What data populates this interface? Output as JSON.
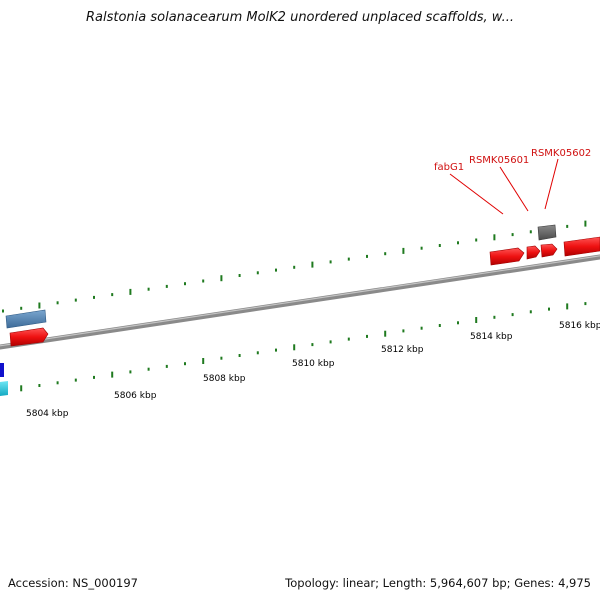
{
  "title": "Ralstonia solanacearum MolK2 unordered unplaced scaffolds, w...",
  "footer": {
    "accession": "Accession: NS_000197",
    "summary": "Topology: linear; Length: 5,964,607 bp; Genes: 4,975"
  },
  "axis": {
    "unit": "kbp",
    "labels": [
      "5804 kbp",
      "5806 kbp",
      "5808 kbp",
      "5810 kbp",
      "5812 kbp",
      "5814 kbp",
      "5816 kbp"
    ]
  },
  "genes": [
    {
      "label": "fabG1",
      "color": "#e00000"
    },
    {
      "label": "RSMK05601",
      "color": "#e00000"
    },
    {
      "label": "RSMK05602",
      "color": "#e00000"
    }
  ],
  "colors": {
    "forward_gene": "#ee1111",
    "steelblue_gene": "#4a7fb0",
    "gray_gene": "#666666",
    "blue_gene": "#1010cc",
    "cyan_gene": "#22c6dd",
    "tick": "#1f7a1f",
    "backbone": "#8a8a8a"
  }
}
